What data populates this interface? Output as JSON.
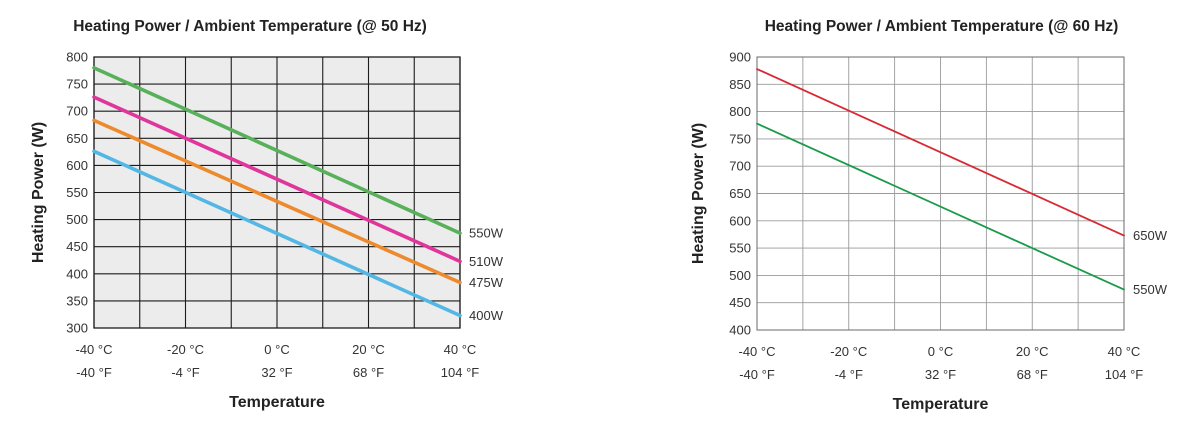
{
  "chart_data": [
    {
      "type": "line",
      "title": "Heating Power / Ambient Temperature (@ 50 Hz)",
      "xlabel": "Temperature",
      "ylabel": "Heating Power (W)",
      "xlim": [
        -40,
        40
      ],
      "ylim": [
        300,
        800
      ],
      "grid": true,
      "x_ticks_c": [
        "-40 °C",
        "-20 °C",
        "0 °C",
        "20 °C",
        "40 °C"
      ],
      "x_ticks_f": [
        "-40 °F",
        "-4 °F",
        "32 °F",
        "68 °F",
        "104 °F"
      ],
      "y_ticks": [
        "300",
        "350",
        "400",
        "450",
        "500",
        "550",
        "600",
        "650",
        "700",
        "750",
        "800"
      ],
      "x": [
        -40,
        40
      ],
      "series": [
        {
          "name": "550W",
          "values": [
            780,
            475
          ],
          "color": "#58b15a"
        },
        {
          "name": "510W",
          "values": [
            726,
            423
          ],
          "color": "#e0359a"
        },
        {
          "name": "475W",
          "values": [
            683,
            384
          ],
          "color": "#ee8a2e"
        },
        {
          "name": "400W",
          "values": [
            626,
            323
          ],
          "color": "#52b7e4"
        }
      ],
      "background": "#ececec"
    },
    {
      "type": "line",
      "title": "Heating Power / Ambient Temperature (@ 60 Hz)",
      "xlabel": "Temperature",
      "ylabel": "Heating Power (W)",
      "xlim": [
        -40,
        40
      ],
      "ylim": [
        400,
        900
      ],
      "grid": true,
      "x_ticks_c": [
        "-40 °C",
        "-20 °C",
        "0 °C",
        "20 °C",
        "40 °C"
      ],
      "x_ticks_f": [
        "-40 °F",
        "-4 °F",
        "32 °F",
        "68 °F",
        "104 °F"
      ],
      "y_ticks": [
        "400",
        "450",
        "500",
        "550",
        "600",
        "650",
        "700",
        "750",
        "800",
        "850",
        "900"
      ],
      "x": [
        -40,
        40
      ],
      "series": [
        {
          "name": "650W",
          "values": [
            878,
            573
          ],
          "color": "#d82a36"
        },
        {
          "name": "550W",
          "values": [
            778,
            474
          ],
          "color": "#1a9b4a"
        }
      ],
      "background": "#ffffff"
    }
  ]
}
